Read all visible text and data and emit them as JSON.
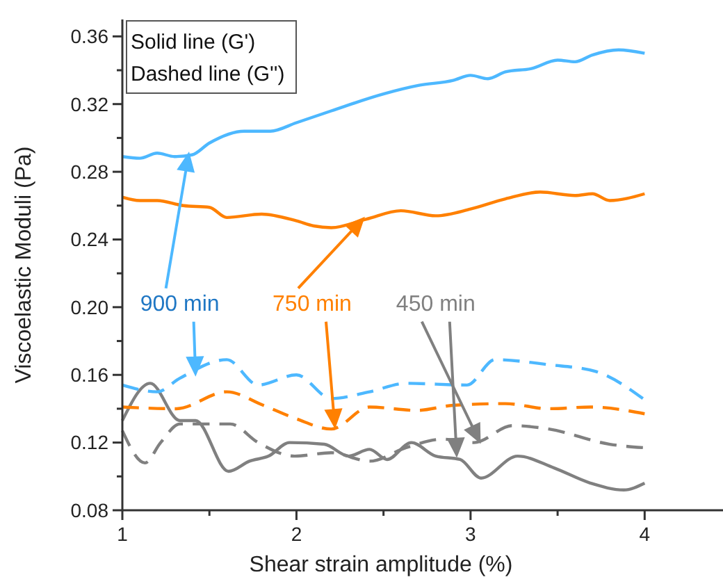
{
  "chart_data": {
    "type": "line",
    "xlabel": "Shear strain amplitude (%)",
    "ylabel": "Viscoelastic Moduli (Pa)",
    "xlim": [
      1,
      4.45
    ],
    "xticks": [
      1,
      {
        "value": 1.5,
        "label": null
      },
      2,
      {
        "value": 2.5,
        "label": null
      },
      3,
      {
        "value": 3.5,
        "label": null
      },
      4
    ],
    "ylim": [
      0.08,
      0.37
    ],
    "yticks": [
      {
        "value": 0.08,
        "label": "0.08"
      },
      {
        "value": 0.1,
        "label": null
      },
      {
        "value": 0.12,
        "label": "0.12"
      },
      {
        "value": 0.14,
        "label": null
      },
      {
        "value": 0.16,
        "label": "0.16"
      },
      {
        "value": 0.18,
        "label": null
      },
      {
        "value": 0.2,
        "label": "0.20"
      },
      {
        "value": 0.22,
        "label": null
      },
      {
        "value": 0.24,
        "label": "0.24"
      },
      {
        "value": 0.26,
        "label": null
      },
      {
        "value": 0.28,
        "label": "0.28"
      },
      {
        "value": 0.3,
        "label": null
      },
      {
        "value": 0.32,
        "label": "0.32"
      },
      {
        "value": 0.34,
        "label": null
      },
      {
        "value": 0.36,
        "label": "0.36"
      }
    ],
    "grid": false,
    "marker": "none",
    "series": [
      {
        "color": "#4db8ff",
        "line_style": "solid",
        "x": [
          1,
          1.1,
          1.2,
          1.3,
          1.4,
          1.5,
          1.7,
          1.85,
          2.0,
          2.2,
          2.5,
          2.7,
          2.9,
          3.0,
          3.1,
          3.2,
          3.35,
          3.5,
          3.6,
          3.7,
          3.85,
          4.0
        ],
        "values": [
          0.289,
          0.288,
          0.291,
          0.289,
          0.29,
          0.297,
          0.304,
          0.304,
          0.309,
          0.316,
          0.326,
          0.331,
          0.334,
          0.337,
          0.335,
          0.339,
          0.341,
          0.346,
          0.345,
          0.349,
          0.352,
          0.35
        ]
      },
      {
        "color": "#ff8000",
        "line_style": "solid",
        "x": [
          1,
          1.1,
          1.2,
          1.35,
          1.5,
          1.6,
          1.8,
          2.0,
          2.1,
          2.2,
          2.4,
          2.6,
          2.8,
          3.0,
          3.2,
          3.4,
          3.6,
          3.7,
          3.8,
          4.0
        ],
        "values": [
          0.265,
          0.263,
          0.263,
          0.26,
          0.259,
          0.253,
          0.255,
          0.251,
          0.248,
          0.247,
          0.252,
          0.257,
          0.254,
          0.258,
          0.264,
          0.268,
          0.266,
          0.267,
          0.263,
          0.267
        ]
      },
      {
        "color": "#808080",
        "line_style": "solid",
        "x": [
          1,
          1.16,
          1.33,
          1.42,
          1.61,
          1.73,
          1.84,
          1.96,
          2.16,
          2.3,
          2.42,
          2.52,
          2.66,
          2.8,
          2.94,
          3.06,
          3.27,
          3.48,
          3.69,
          3.88,
          4.0
        ],
        "values": [
          0.133,
          0.155,
          0.133,
          0.133,
          0.103,
          0.109,
          0.112,
          0.12,
          0.119,
          0.112,
          0.116,
          0.11,
          0.12,
          0.112,
          0.11,
          0.099,
          0.112,
          0.105,
          0.096,
          0.092,
          0.096
        ]
      },
      {
        "color": "#4db8ff",
        "line_style": "dashed",
        "x": [
          1,
          1.2,
          1.33,
          1.6,
          1.78,
          2.0,
          2.2,
          2.42,
          2.63,
          2.98,
          3.14,
          3.45,
          3.72,
          3.99
        ],
        "values": [
          0.154,
          0.15,
          0.158,
          0.169,
          0.154,
          0.16,
          0.146,
          0.15,
          0.155,
          0.154,
          0.169,
          0.166,
          0.162,
          0.146
        ]
      },
      {
        "color": "#ff8000",
        "line_style": "dashed",
        "x": [
          1,
          1.31,
          1.6,
          1.81,
          2.0,
          2.2,
          2.42,
          2.69,
          2.9,
          3.2,
          3.45,
          3.69,
          4.0
        ],
        "values": [
          0.141,
          0.14,
          0.15,
          0.142,
          0.134,
          0.128,
          0.141,
          0.139,
          0.142,
          0.143,
          0.14,
          0.141,
          0.137
        ]
      },
      {
        "color": "#808080",
        "line_style": "dashed",
        "x": [
          1,
          1.13,
          1.22,
          1.33,
          1.62,
          1.78,
          1.99,
          2.2,
          2.42,
          2.63,
          2.84,
          3.02,
          3.24,
          3.45,
          3.8,
          3.99
        ],
        "values": [
          0.127,
          0.108,
          0.12,
          0.131,
          0.131,
          0.12,
          0.112,
          0.114,
          0.109,
          0.117,
          0.122,
          0.12,
          0.13,
          0.128,
          0.119,
          0.117
        ]
      }
    ],
    "annotations": [
      "Solid line (G')",
      "Dashed line (G'')",
      {
        "text": "900 min",
        "x": 1.42,
        "y": 0.161
      },
      "750 min",
      "450 min"
    ]
  }
}
